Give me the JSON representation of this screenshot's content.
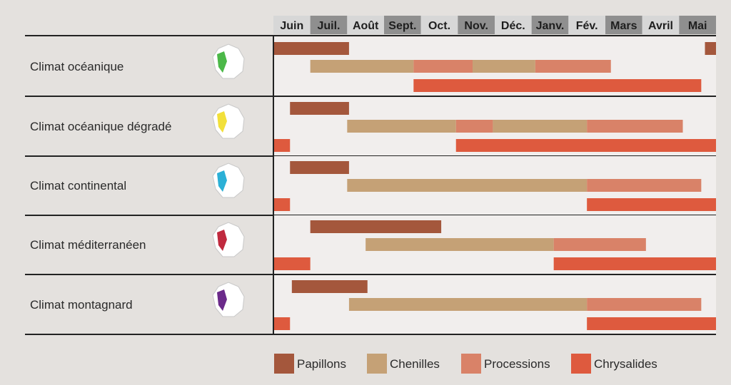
{
  "chart_data": {
    "type": "gantt",
    "title": "",
    "months": [
      "Juin",
      "Juil.",
      "Août",
      "Sept.",
      "Oct.",
      "Nov.",
      "Déc.",
      "Janv.",
      "Fév.",
      "Mars",
      "Avril",
      "Mai"
    ],
    "shaded_months": [
      "Juil.",
      "Sept.",
      "Nov.",
      "Janv.",
      "Mars",
      "Mai"
    ],
    "stages": [
      {
        "key": "papillons",
        "name": "Papillons",
        "color": "#a4573c"
      },
      {
        "key": "chenilles",
        "name": "Chenilles",
        "color": "#c5a176"
      },
      {
        "key": "processions",
        "name": "Processions",
        "color": "#d98268"
      },
      {
        "key": "chrysalides",
        "name": "Chrysalides",
        "color": "#de5a3e"
      }
    ],
    "rows": [
      {
        "label": "Climat océanique",
        "map_region_color": "#4cb848",
        "lanes": [
          [
            {
              "stage": "papillons",
              "start": 0,
              "end": 2.05
            },
            {
              "stage": "papillons",
              "start": 11.7,
              "end": 12
            }
          ],
          [
            {
              "stage": "chenilles",
              "start": 1.0,
              "end": 3.8
            },
            {
              "stage": "processions",
              "start": 3.8,
              "end": 5.4
            },
            {
              "stage": "chenilles",
              "start": 5.4,
              "end": 7.1
            },
            {
              "stage": "processions",
              "start": 7.1,
              "end": 9.15
            }
          ],
          [
            {
              "stage": "chrysalides",
              "start": 3.8,
              "end": 11.6
            }
          ]
        ]
      },
      {
        "label": "Climat océanique dégradé",
        "map_region_color": "#f2e03a",
        "lanes": [
          [
            {
              "stage": "papillons",
              "start": 0.45,
              "end": 2.05
            }
          ],
          [
            {
              "stage": "chenilles",
              "start": 2.0,
              "end": 4.95
            },
            {
              "stage": "processions",
              "start": 4.95,
              "end": 5.95
            },
            {
              "stage": "chenilles",
              "start": 5.95,
              "end": 8.5
            },
            {
              "stage": "processions",
              "start": 8.5,
              "end": 11.1
            }
          ],
          [
            {
              "stage": "chrysalides",
              "start": 0,
              "end": 0.45
            },
            {
              "stage": "chrysalides",
              "start": 4.95,
              "end": 12
            }
          ]
        ]
      },
      {
        "label": "Climat continental",
        "map_region_color": "#2bb0d6",
        "lanes": [
          [
            {
              "stage": "papillons",
              "start": 0.45,
              "end": 2.05
            }
          ],
          [
            {
              "stage": "chenilles",
              "start": 2.0,
              "end": 8.5
            },
            {
              "stage": "processions",
              "start": 8.5,
              "end": 11.6
            }
          ],
          [
            {
              "stage": "chrysalides",
              "start": 0,
              "end": 0.45
            },
            {
              "stage": "chrysalides",
              "start": 8.5,
              "end": 12
            }
          ]
        ]
      },
      {
        "label": "Climat méditerranéen",
        "map_region_color": "#c02a3e",
        "lanes": [
          [
            {
              "stage": "papillons",
              "start": 1.0,
              "end": 4.55
            }
          ],
          [
            {
              "stage": "chenilles",
              "start": 2.5,
              "end": 7.6
            },
            {
              "stage": "processions",
              "start": 7.6,
              "end": 10.1
            }
          ],
          [
            {
              "stage": "chrysalides",
              "start": 0,
              "end": 1.0
            },
            {
              "stage": "chrysalides",
              "start": 7.6,
              "end": 12
            }
          ]
        ]
      },
      {
        "label": "Climat montagnard",
        "map_region_color": "#6b2a8a",
        "lanes": [
          [
            {
              "stage": "papillons",
              "start": 0.5,
              "end": 2.55
            }
          ],
          [
            {
              "stage": "chenilles",
              "start": 2.05,
              "end": 8.5
            },
            {
              "stage": "processions",
              "start": 8.5,
              "end": 11.6
            }
          ],
          [
            {
              "stage": "chrysalides",
              "start": 0,
              "end": 0.45
            },
            {
              "stage": "chrysalides",
              "start": 8.5,
              "end": 12
            }
          ]
        ]
      }
    ],
    "legend_position": "bottom"
  }
}
